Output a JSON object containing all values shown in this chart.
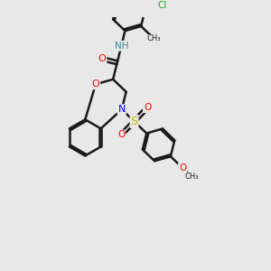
{
  "bg_color": "#e8e8e8",
  "bond_color": "#1a1a1a",
  "bond_width": 1.8,
  "dbo": 0.07,
  "figsize": [
    3.0,
    3.0
  ],
  "dpi": 100,
  "xlim": [
    0,
    10
  ],
  "ylim": [
    0,
    10
  ],
  "r": 0.72
}
